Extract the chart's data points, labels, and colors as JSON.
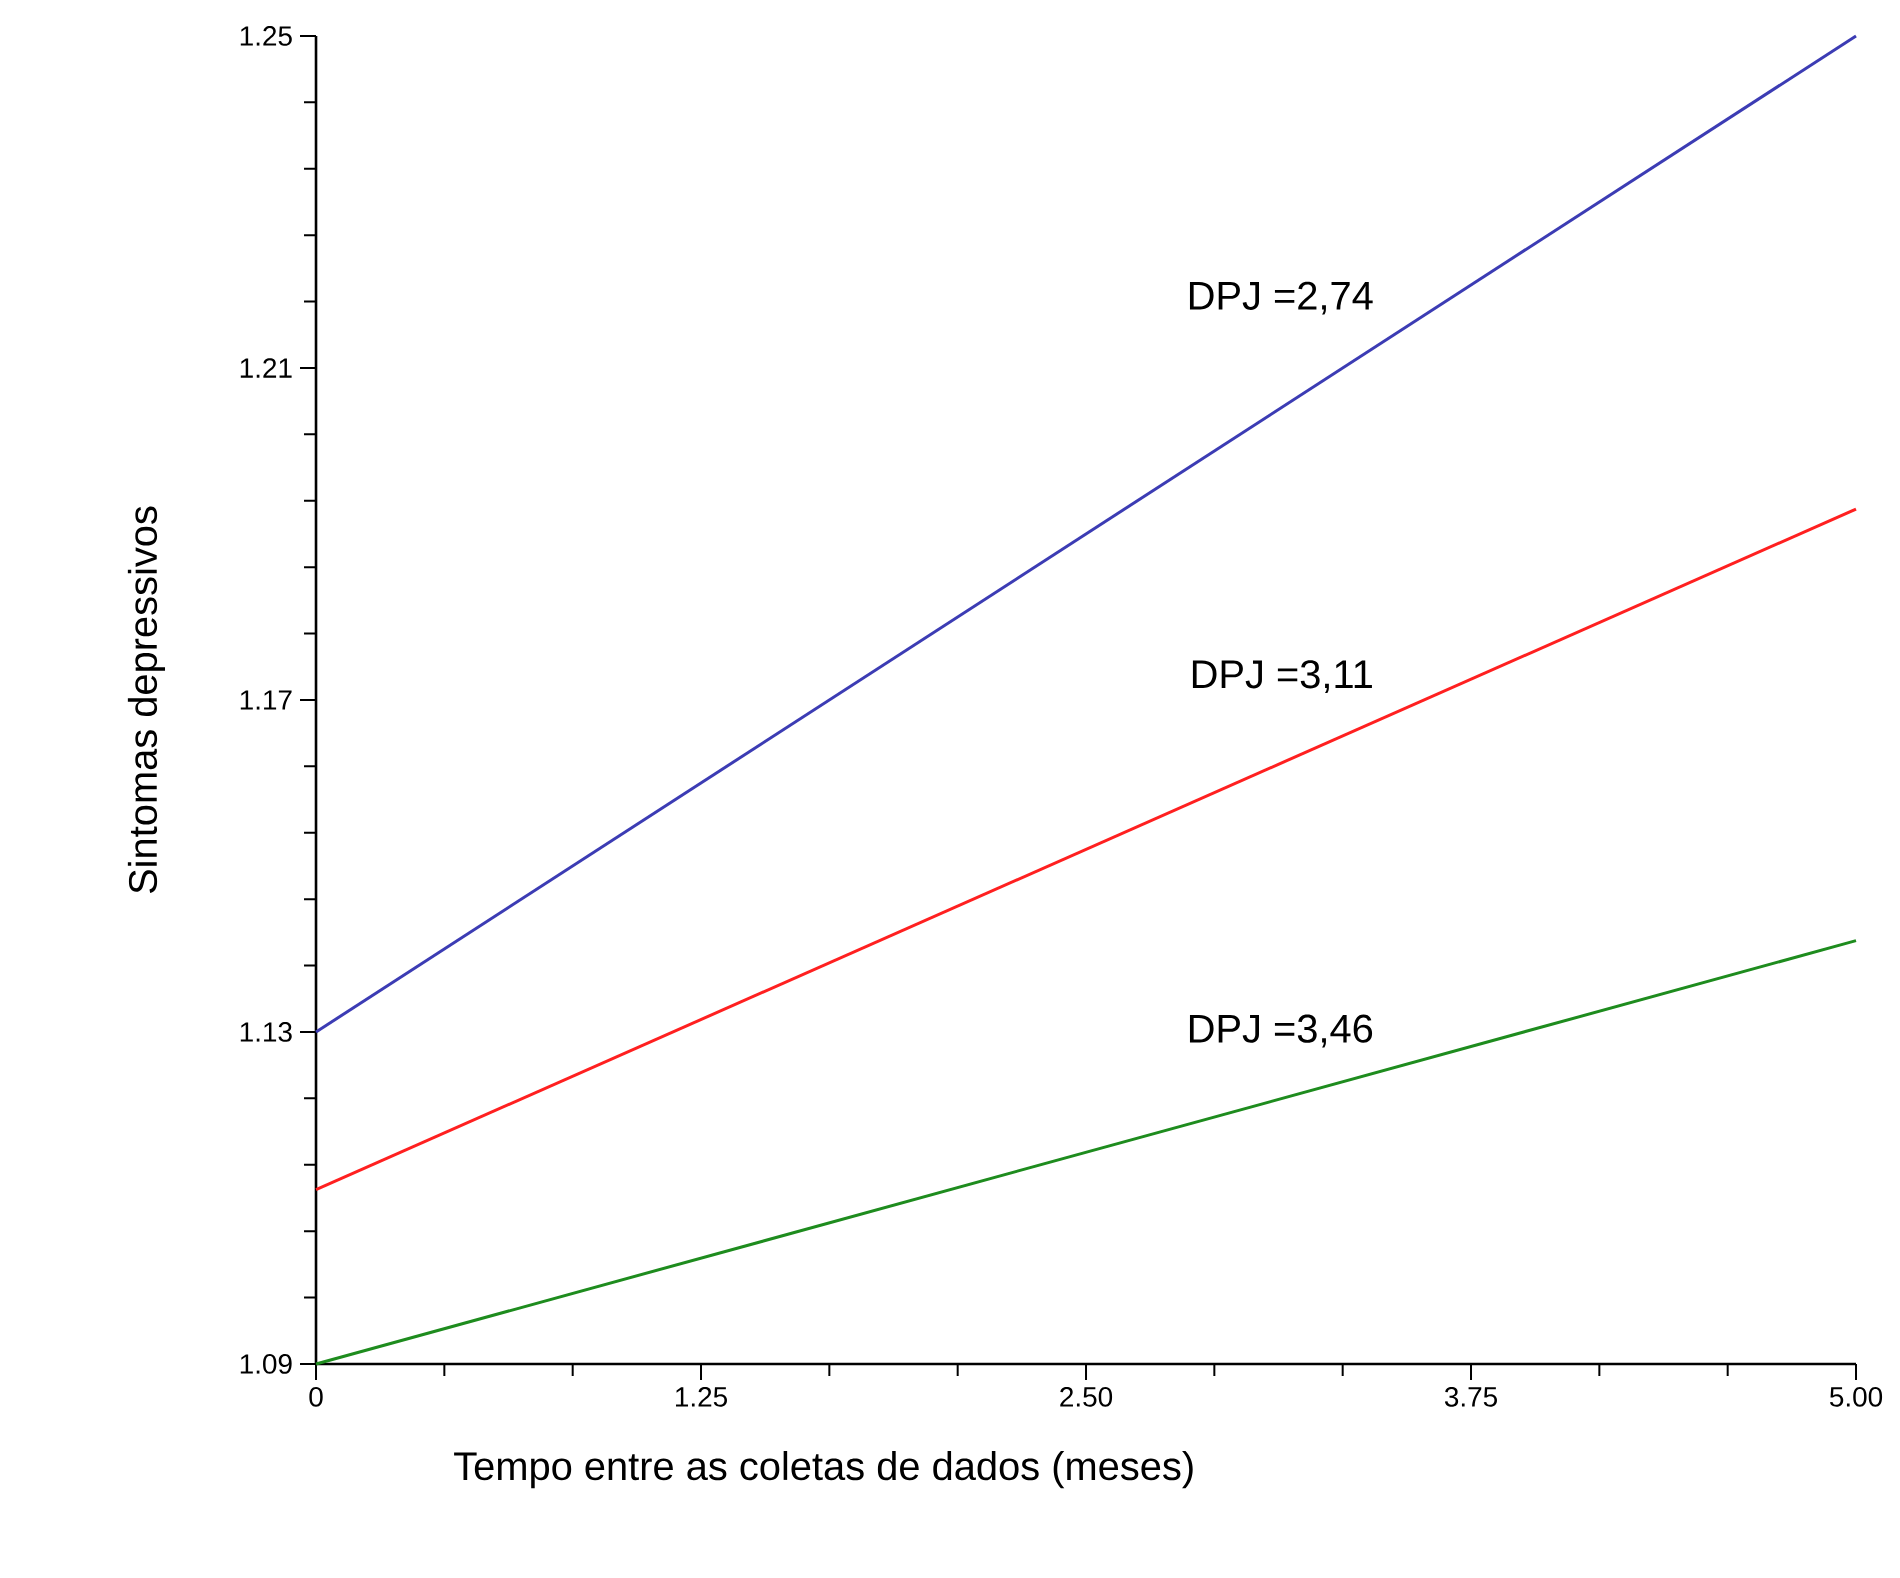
{
  "chart_data": {
    "type": "line",
    "xlabel": "Tempo entre as coletas de dados (meses)",
    "ylabel": "Sintomas depressivos",
    "x": [
      0,
      5
    ],
    "series": [
      {
        "name": "DPJ =2,74",
        "color": "#3c3cb4",
        "values": [
          1.13,
          1.25
        ]
      },
      {
        "name": "DPJ =3,11",
        "color": "#ff2020",
        "values": [
          1.111,
          1.193
        ]
      },
      {
        "name": "DPJ =3,46",
        "color": "#1e8c1e",
        "values": [
          1.09,
          1.141
        ]
      }
    ],
    "xlim": [
      0,
      5
    ],
    "ylim": [
      1.09,
      1.25
    ],
    "xticks": [
      {
        "value": 0,
        "label": "0"
      },
      {
        "value": 1.25,
        "label": "1.25"
      },
      {
        "value": 2.5,
        "label": "2.50"
      },
      {
        "value": 3.75,
        "label": "3.75"
      },
      {
        "value": 5,
        "label": "5.00"
      }
    ],
    "yticks": [
      1.09,
      1.13,
      1.17,
      1.21,
      1.25
    ],
    "grid": false,
    "legend": false,
    "marker": "none",
    "line_style": "solid"
  }
}
